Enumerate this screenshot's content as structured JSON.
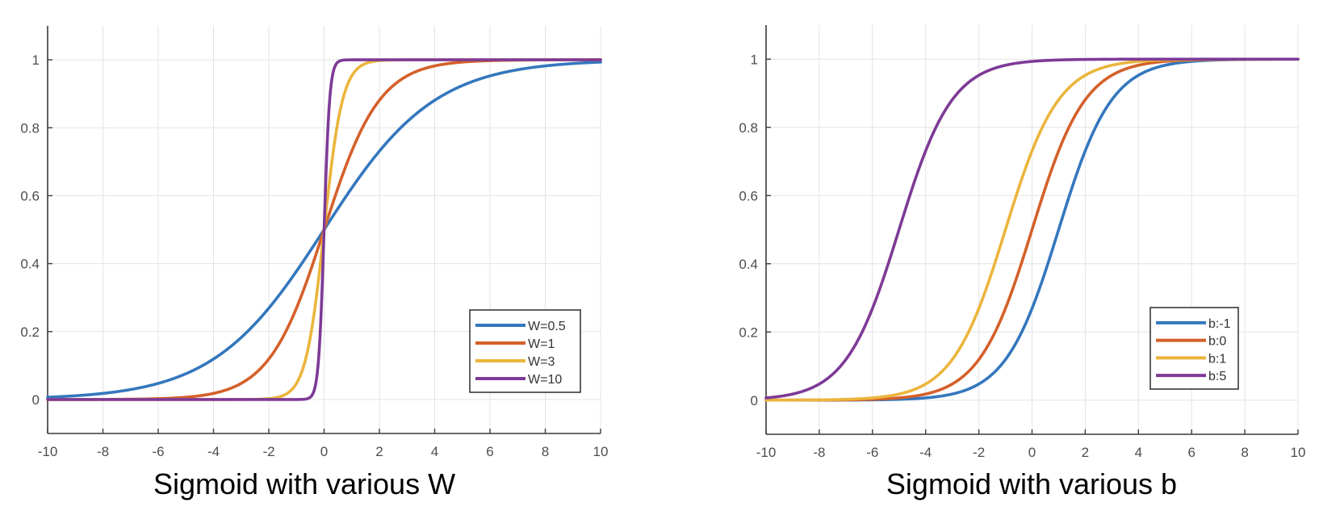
{
  "chart_data": [
    {
      "type": "line",
      "title": "Sigmoid with various W",
      "xlabel": "",
      "ylabel": "",
      "function": "1/(1+exp(-W*x))",
      "xlim": [
        -10,
        10
      ],
      "ylim": [
        -0.1,
        1.1
      ],
      "xticks": [
        -10,
        -8,
        -6,
        -4,
        -2,
        0,
        2,
        4,
        6,
        8,
        10
      ],
      "yticks": [
        0,
        0.2,
        0.4,
        0.6,
        0.8,
        1
      ],
      "xtick_labels": [
        "-10",
        "-8",
        "-6",
        "-4",
        "-2",
        "0",
        "2",
        "4",
        "6",
        "8",
        "10"
      ],
      "ytick_labels": [
        "0",
        "0.2",
        "0.4",
        "0.6",
        "0.8",
        "1"
      ],
      "grid": true,
      "legend_position": "bottom-right",
      "series": [
        {
          "name": "W=0.5",
          "W": 0.5,
          "b": 0,
          "color": "#3477bd",
          "x": [
            -10,
            -8,
            -6,
            -4,
            -2,
            0,
            2,
            4,
            6,
            8,
            10
          ],
          "values": [
            0.007,
            0.018,
            0.047,
            0.119,
            0.269,
            0.5,
            0.731,
            0.881,
            0.953,
            0.982,
            0.993
          ]
        },
        {
          "name": "W=1",
          "W": 1,
          "b": 0,
          "color": "#d4602a",
          "x": [
            -10,
            -8,
            -6,
            -4,
            -2,
            0,
            2,
            4,
            6,
            8,
            10
          ],
          "values": [
            0.0,
            0.0,
            0.002,
            0.018,
            0.119,
            0.5,
            0.881,
            0.982,
            0.998,
            1.0,
            1.0
          ]
        },
        {
          "name": "W=3",
          "W": 3,
          "b": 0,
          "color": "#ebb53c",
          "x": [
            -10,
            -8,
            -6,
            -4,
            -2,
            0,
            2,
            4,
            6,
            8,
            10
          ],
          "values": [
            0.0,
            0.0,
            0.0,
            0.0,
            0.002,
            0.5,
            0.998,
            1.0,
            1.0,
            1.0,
            1.0
          ]
        },
        {
          "name": "W=10",
          "W": 10,
          "b": 0,
          "color": "#7e3a96",
          "x": [
            -10,
            -8,
            -6,
            -4,
            -2,
            0,
            2,
            4,
            6,
            8,
            10
          ],
          "values": [
            0.0,
            0.0,
            0.0,
            0.0,
            0.0,
            0.5,
            1.0,
            1.0,
            1.0,
            1.0,
            1.0
          ]
        }
      ]
    },
    {
      "type": "line",
      "title": "Sigmoid with various b",
      "xlabel": "",
      "ylabel": "",
      "function": "1/(1+exp(-(x+b)))",
      "xlim": [
        -10,
        10
      ],
      "ylim": [
        -0.1,
        1.1
      ],
      "xticks": [
        -10,
        -8,
        -6,
        -4,
        -2,
        0,
        2,
        4,
        6,
        8,
        10
      ],
      "yticks": [
        0,
        0.2,
        0.4,
        0.6,
        0.8,
        1
      ],
      "xtick_labels": [
        "-10",
        "-8",
        "-6",
        "-4",
        "-2",
        "0",
        "2",
        "4",
        "6",
        "8",
        "10"
      ],
      "ytick_labels": [
        "0",
        "0.2",
        "0.4",
        "0.6",
        "0.8",
        "1"
      ],
      "grid": true,
      "legend_position": "bottom-right",
      "series": [
        {
          "name": "b:-1",
          "W": 1,
          "b": -1,
          "color": "#3477bd",
          "x": [
            -10,
            -8,
            -6,
            -4,
            -2,
            0,
            2,
            4,
            6,
            8,
            10
          ],
          "values": [
            0.0,
            0.0,
            0.001,
            0.007,
            0.047,
            0.269,
            0.731,
            0.953,
            0.993,
            0.999,
            1.0
          ]
        },
        {
          "name": "b:0",
          "W": 1,
          "b": 0,
          "color": "#d4602a",
          "x": [
            -10,
            -8,
            -6,
            -4,
            -2,
            0,
            2,
            4,
            6,
            8,
            10
          ],
          "values": [
            0.0,
            0.0,
            0.002,
            0.018,
            0.119,
            0.5,
            0.881,
            0.982,
            0.998,
            1.0,
            1.0
          ]
        },
        {
          "name": "b:1",
          "W": 1,
          "b": 1,
          "color": "#ebb53c",
          "x": [
            -10,
            -8,
            -6,
            -4,
            -2,
            0,
            2,
            4,
            6,
            8,
            10
          ],
          "values": [
            0.0,
            0.001,
            0.007,
            0.047,
            0.269,
            0.731,
            0.953,
            0.993,
            0.999,
            1.0,
            1.0
          ]
        },
        {
          "name": "b:5",
          "W": 1,
          "b": 5,
          "color": "#7e3a96",
          "x": [
            -10,
            -8,
            -6,
            -4,
            -2,
            0,
            2,
            4,
            6,
            8,
            10
          ],
          "values": [
            0.007,
            0.047,
            0.269,
            0.731,
            0.953,
            0.993,
            0.999,
            1.0,
            1.0,
            1.0,
            1.0
          ]
        }
      ]
    }
  ]
}
